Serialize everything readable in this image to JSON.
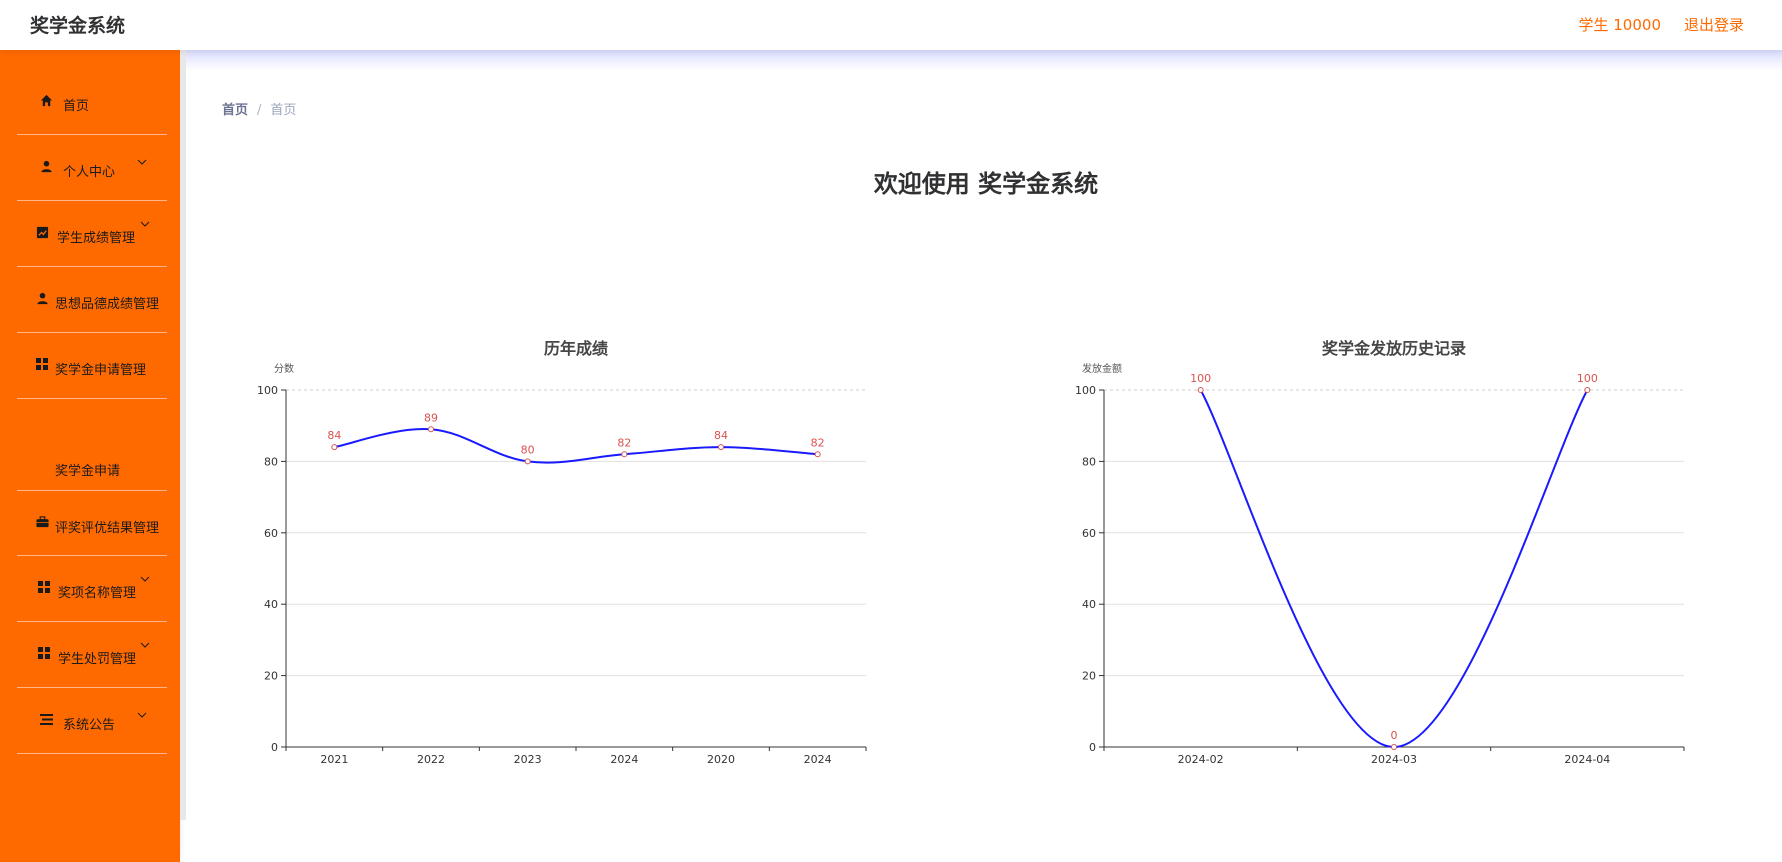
{
  "header": {
    "title": "奖学金系统",
    "user": "学生 10000",
    "logout": "退出登录"
  },
  "sidebar": {
    "items": [
      {
        "label": "首页",
        "icon": "home-icon",
        "chevron": false
      },
      {
        "label": "个人中心",
        "icon": "user-icon",
        "chevron": true
      },
      {
        "label": "学生成绩管理",
        "icon": "chart-line-icon",
        "chevron": true
      },
      {
        "label": "思想品德成绩管理",
        "icon": "user-icon",
        "chevron": false
      },
      {
        "label": "奖学金申请管理",
        "icon": "grid-icon",
        "chevron": false
      },
      {
        "label": "评奖评优结果管理",
        "icon": "briefcase-icon",
        "chevron": false
      },
      {
        "label": "奖项名称管理",
        "icon": "grid-icon",
        "chevron": true
      },
      {
        "label": "学生处罚管理",
        "icon": "grid-icon",
        "chevron": true
      },
      {
        "label": "系统公告",
        "icon": "list-icon",
        "chevron": true
      }
    ],
    "subitem": "奖学金申请"
  },
  "breadcrumb": {
    "home": "首页",
    "sep": "/",
    "current": "首页"
  },
  "welcome": "欢迎使用 奖学金系统",
  "colors": {
    "accent": "#ff6a00",
    "line": "#1a1aff",
    "point": "#d9534f"
  },
  "chart_data": [
    {
      "type": "line",
      "title": "历年成绩",
      "ylabel": "分数",
      "categories": [
        "2021",
        "2022",
        "2023",
        "2024",
        "2020",
        "2024"
      ],
      "values": [
        84,
        89,
        80,
        82,
        84,
        82
      ],
      "ylim": [
        0,
        100
      ],
      "yticks": [
        0,
        20,
        40,
        60,
        80,
        100
      ],
      "smooth": true,
      "grid": true
    },
    {
      "type": "line",
      "title": "奖学金发放历史记录",
      "ylabel": "发放金额",
      "categories": [
        "2024-02",
        "2024-03",
        "2024-04"
      ],
      "values": [
        100,
        0,
        100
      ],
      "ylim": [
        0,
        100
      ],
      "yticks": [
        0,
        20,
        40,
        60,
        80,
        100
      ],
      "smooth": true,
      "grid": true
    }
  ]
}
